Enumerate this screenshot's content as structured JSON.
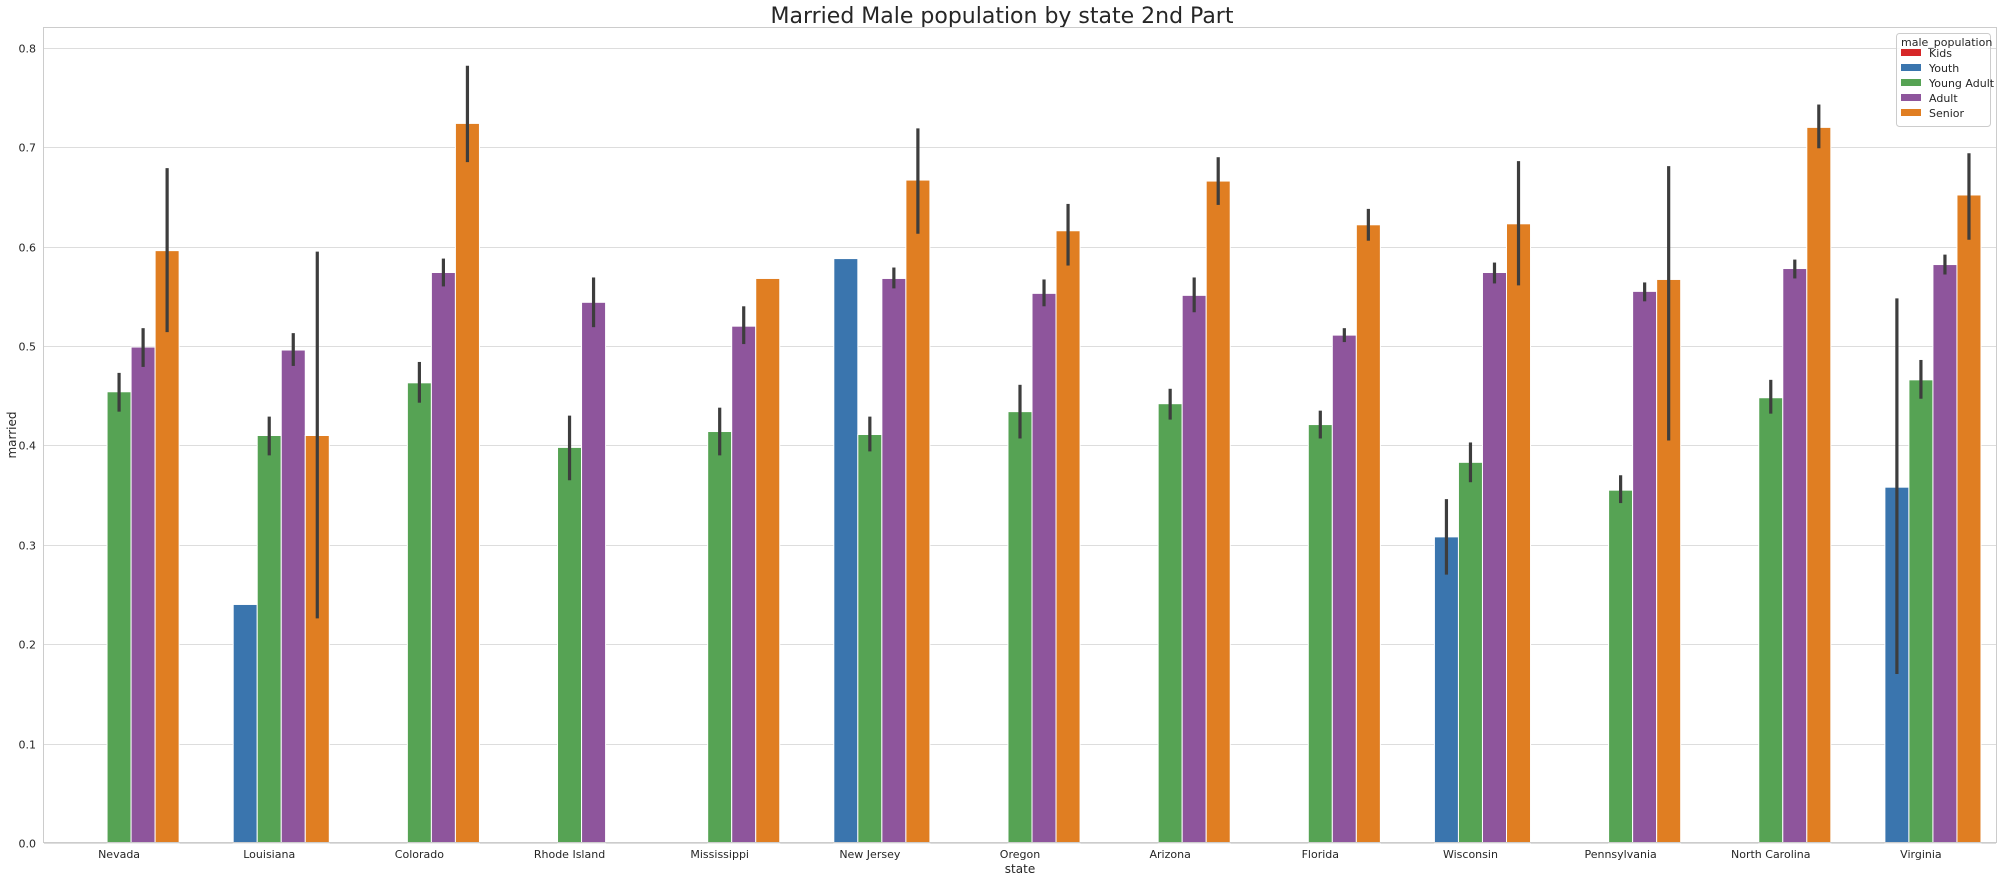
{
  "chart_data": {
    "type": "bar",
    "title": "Married Male population by state 2nd Part",
    "xlabel": "state",
    "ylabel": "married",
    "ylim": [
      0,
      0.82
    ],
    "yticks": [
      "0.0",
      "0.1",
      "0.2",
      "0.3",
      "0.4",
      "0.5",
      "0.6",
      "0.7",
      "0.8"
    ],
    "grid": true,
    "legend": {
      "title": "male_population",
      "placement": "top-right"
    },
    "categories": [
      "Nevada",
      "Louisiana",
      "Colorado",
      "Rhode Island",
      "Mississippi",
      "New Jersey",
      "Oregon",
      "Arizona",
      "Florida",
      "Wisconsin",
      "Pennsylvania",
      "North Carolina",
      "Virginia"
    ],
    "series": [
      {
        "name": "Kids",
        "color": "#d62728",
        "values": [
          null,
          null,
          null,
          null,
          null,
          null,
          null,
          null,
          null,
          null,
          null,
          null,
          null
        ],
        "err": [
          null,
          null,
          null,
          null,
          null,
          null,
          null,
          null,
          null,
          null,
          null,
          null,
          null
        ]
      },
      {
        "name": "Youth",
        "color": "#3a75ae",
        "values": [
          null,
          0.24,
          null,
          null,
          null,
          0.588,
          null,
          null,
          null,
          0.308,
          null,
          null,
          0.358
        ],
        "err": [
          null,
          null,
          null,
          null,
          null,
          null,
          null,
          null,
          null,
          [
            0.27,
            0.346
          ],
          null,
          null,
          [
            0.17,
            0.548
          ]
        ]
      },
      {
        "name": "Young Adult",
        "color": "#56a354",
        "values": [
          0.454,
          0.41,
          0.463,
          0.398,
          0.414,
          0.411,
          0.434,
          0.442,
          0.421,
          0.383,
          0.355,
          0.448,
          0.466
        ],
        "err": [
          [
            0.434,
            0.473
          ],
          [
            0.39,
            0.429
          ],
          [
            0.443,
            0.484
          ],
          [
            0.365,
            0.43
          ],
          [
            0.39,
            0.438
          ],
          [
            0.394,
            0.429
          ],
          [
            0.407,
            0.461
          ],
          [
            0.426,
            0.457
          ],
          [
            0.407,
            0.435
          ],
          [
            0.363,
            0.403
          ],
          [
            0.342,
            0.37
          ],
          [
            0.432,
            0.466
          ],
          [
            0.447,
            0.486
          ]
        ]
      },
      {
        "name": "Adult",
        "color": "#8e559c",
        "values": [
          0.499,
          0.496,
          0.574,
          0.544,
          0.52,
          0.568,
          0.553,
          0.551,
          0.511,
          0.574,
          0.555,
          0.578,
          0.582
        ],
        "err": [
          [
            0.479,
            0.518
          ],
          [
            0.48,
            0.513
          ],
          [
            0.56,
            0.588
          ],
          [
            0.519,
            0.569
          ],
          [
            0.502,
            0.54
          ],
          [
            0.558,
            0.579
          ],
          [
            0.54,
            0.567
          ],
          [
            0.534,
            0.569
          ],
          [
            0.504,
            0.518
          ],
          [
            0.563,
            0.584
          ],
          [
            0.545,
            0.564
          ],
          [
            0.568,
            0.587
          ],
          [
            0.572,
            0.592
          ]
        ]
      },
      {
        "name": "Senior",
        "color": "#e07e22",
        "values": [
          0.596,
          0.41,
          0.724,
          null,
          0.568,
          0.667,
          0.616,
          0.666,
          0.622,
          0.623,
          0.567,
          0.72,
          0.652
        ],
        "err": [
          [
            0.514,
            0.679
          ],
          [
            0.226,
            0.595
          ],
          [
            0.685,
            0.782
          ],
          null,
          null,
          [
            0.613,
            0.719
          ],
          [
            0.581,
            0.643
          ],
          [
            0.642,
            0.69
          ],
          [
            0.606,
            0.638
          ],
          [
            0.561,
            0.686
          ],
          [
            0.405,
            0.681
          ],
          [
            0.699,
            0.743
          ],
          [
            0.607,
            0.694
          ]
        ]
      }
    ]
  }
}
